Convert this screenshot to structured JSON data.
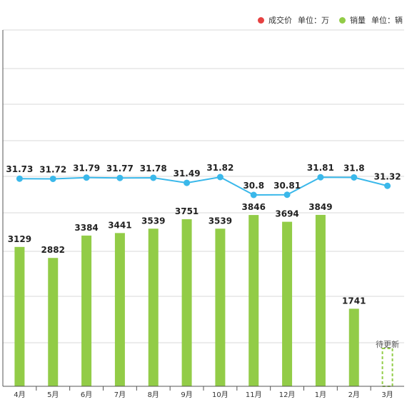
{
  "legend": {
    "price_label": "成交价",
    "price_unit": "单位：万",
    "sales_label": "销量",
    "sales_unit": "单位：辆"
  },
  "chart_data": {
    "type": "bar",
    "categories": [
      "4月",
      "5月",
      "6月",
      "7月",
      "8月",
      "9月",
      "10月",
      "11月",
      "12月",
      "1月",
      "2月",
      "3月"
    ],
    "series": [
      {
        "name": "销量",
        "type": "bar",
        "color": "#92cc47",
        "values": [
          3129,
          2882,
          3384,
          3441,
          3539,
          3751,
          3539,
          3846,
          3694,
          3849,
          1741,
          null
        ]
      },
      {
        "name": "成交价",
        "type": "line",
        "color": "#3ab8ea",
        "values": [
          31.73,
          31.72,
          31.79,
          31.77,
          31.78,
          31.49,
          31.82,
          30.8,
          30.81,
          31.81,
          31.8,
          31.32
        ]
      }
    ],
    "pending_label": "待更新",
    "legend_colors": {
      "price": "#e64141",
      "sales": "#92cc47"
    },
    "grid": true,
    "legend_position": "top-right",
    "bar_ylim": [
      0,
      8000
    ]
  }
}
